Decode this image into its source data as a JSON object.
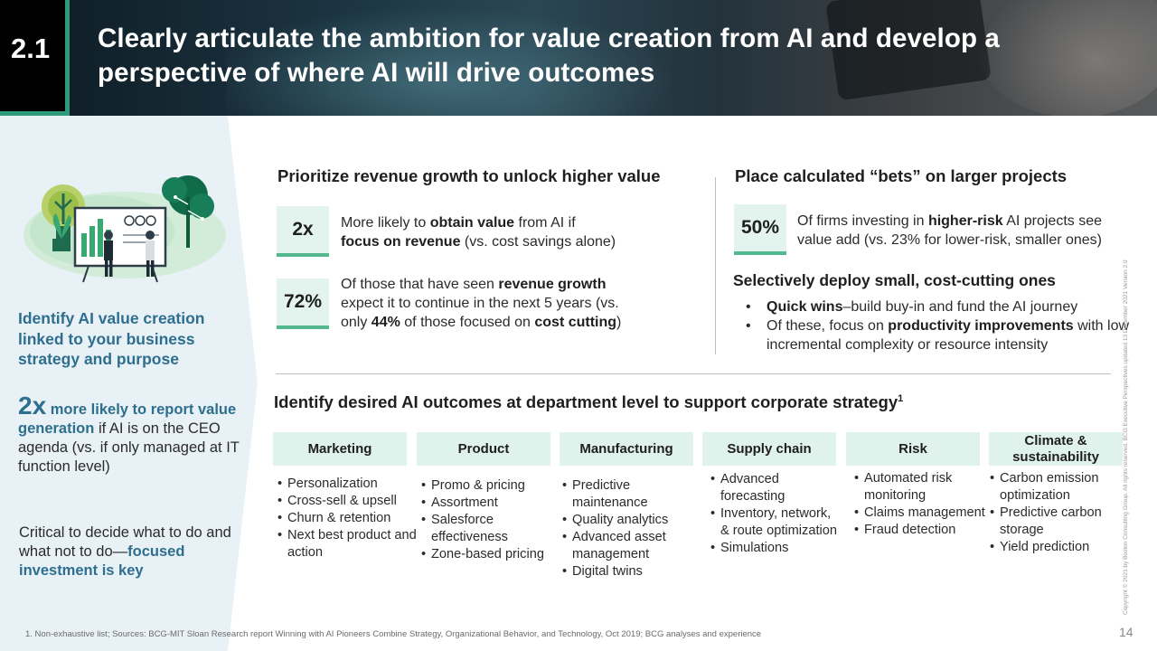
{
  "header": {
    "section_number": "2.1",
    "title": "Clearly articulate the ambition for value creation from AI and develop a perspective of where AI will drive outcomes"
  },
  "left_panel": {
    "heading": "Identify AI value creation linked to your business strategy and purpose",
    "stat_big": "2x",
    "stat_hl1": "more likely to report value generation",
    "stat_rest": "if AI is on the CEO agenda (vs. if only managed at IT function level)",
    "critical_text": "Critical to decide what to do and what not to do—",
    "critical_hl": "focused investment is key"
  },
  "revenue": {
    "title": "Prioritize revenue growth to unlock higher value",
    "stat1_value": "2x",
    "stat1_parts": [
      "More likely to ",
      "obtain value",
      " from AI if ",
      "focus on revenue",
      " (vs. cost savings alone)"
    ],
    "stat2_value": "72%",
    "stat2_parts": [
      "Of those that have seen ",
      "revenue growth",
      " expect it to continue in the next 5 years (vs. only ",
      "44%",
      " of those focused on ",
      "cost cutting",
      ")"
    ]
  },
  "bets": {
    "title": "Place calculated “bets” on larger projects",
    "stat_value": "50%",
    "stat_parts": [
      "Of firms investing in ",
      "higher-risk",
      " AI projects see value add (vs. 23% for lower-risk, smaller ones)"
    ],
    "subtitle": "Selectively deploy small, cost-cutting ones",
    "bullet1_bold": "Quick wins",
    "bullet1_rest": "–build buy-in and fund the AI journey",
    "bullet2_a": "Of these, focus on ",
    "bullet2_bold": "productivity improvements",
    "bullet2_b": " with low incremental complexity or resource intensity"
  },
  "departments": {
    "title": "Identify desired AI outcomes at department level to support corporate strategy",
    "title_sup": "1",
    "columns": [
      {
        "name": "Marketing",
        "items": [
          "Personalization",
          "Cross-sell & upsell",
          "Churn & retention",
          "Next best product and action"
        ]
      },
      {
        "name": "Product",
        "items": [
          "Promo & pricing",
          "Assortment",
          "Salesforce effectiveness",
          "Zone-based pricing"
        ]
      },
      {
        "name": "Manufacturing",
        "items": [
          "Predictive maintenance",
          "Quality analytics",
          "Advanced asset management",
          "Digital twins"
        ]
      },
      {
        "name": "Supply chain",
        "items": [
          "Advanced forecasting",
          "Inventory, network, & route optimization",
          "Simulations"
        ]
      },
      {
        "name": "Risk",
        "items": [
          "Automated risk monitoring",
          "Claims management",
          "Fraud detection"
        ]
      },
      {
        "name": "Climate & sustainability",
        "items": [
          "Carbon emission optimization",
          "Predictive carbon storage",
          "Yield prediction"
        ]
      }
    ]
  },
  "footer": {
    "footnote": "1. Non-exhaustive list; Sources: BCG-MIT Sloan Research report Winning with AI Pioneers Combine Strategy, Organizational Behavior, and Technology, Oct 2019; BCG analyses and experience",
    "page_number": "14",
    "copyright": "Copyright © 2021 by Boston Consulting Group. All rights reserved. BCG Executive Perspectives updated 13 December 2021 Version 2.0"
  },
  "colors": {
    "accent_teal": "#2f9b7a",
    "heading_blue": "#2e6e8e",
    "stat_box_fill": "#e3f4ee",
    "stat_box_bar": "#53b790",
    "dept_header_fill": "#dff2ec",
    "left_panel_fill": "#e8f1f6"
  }
}
